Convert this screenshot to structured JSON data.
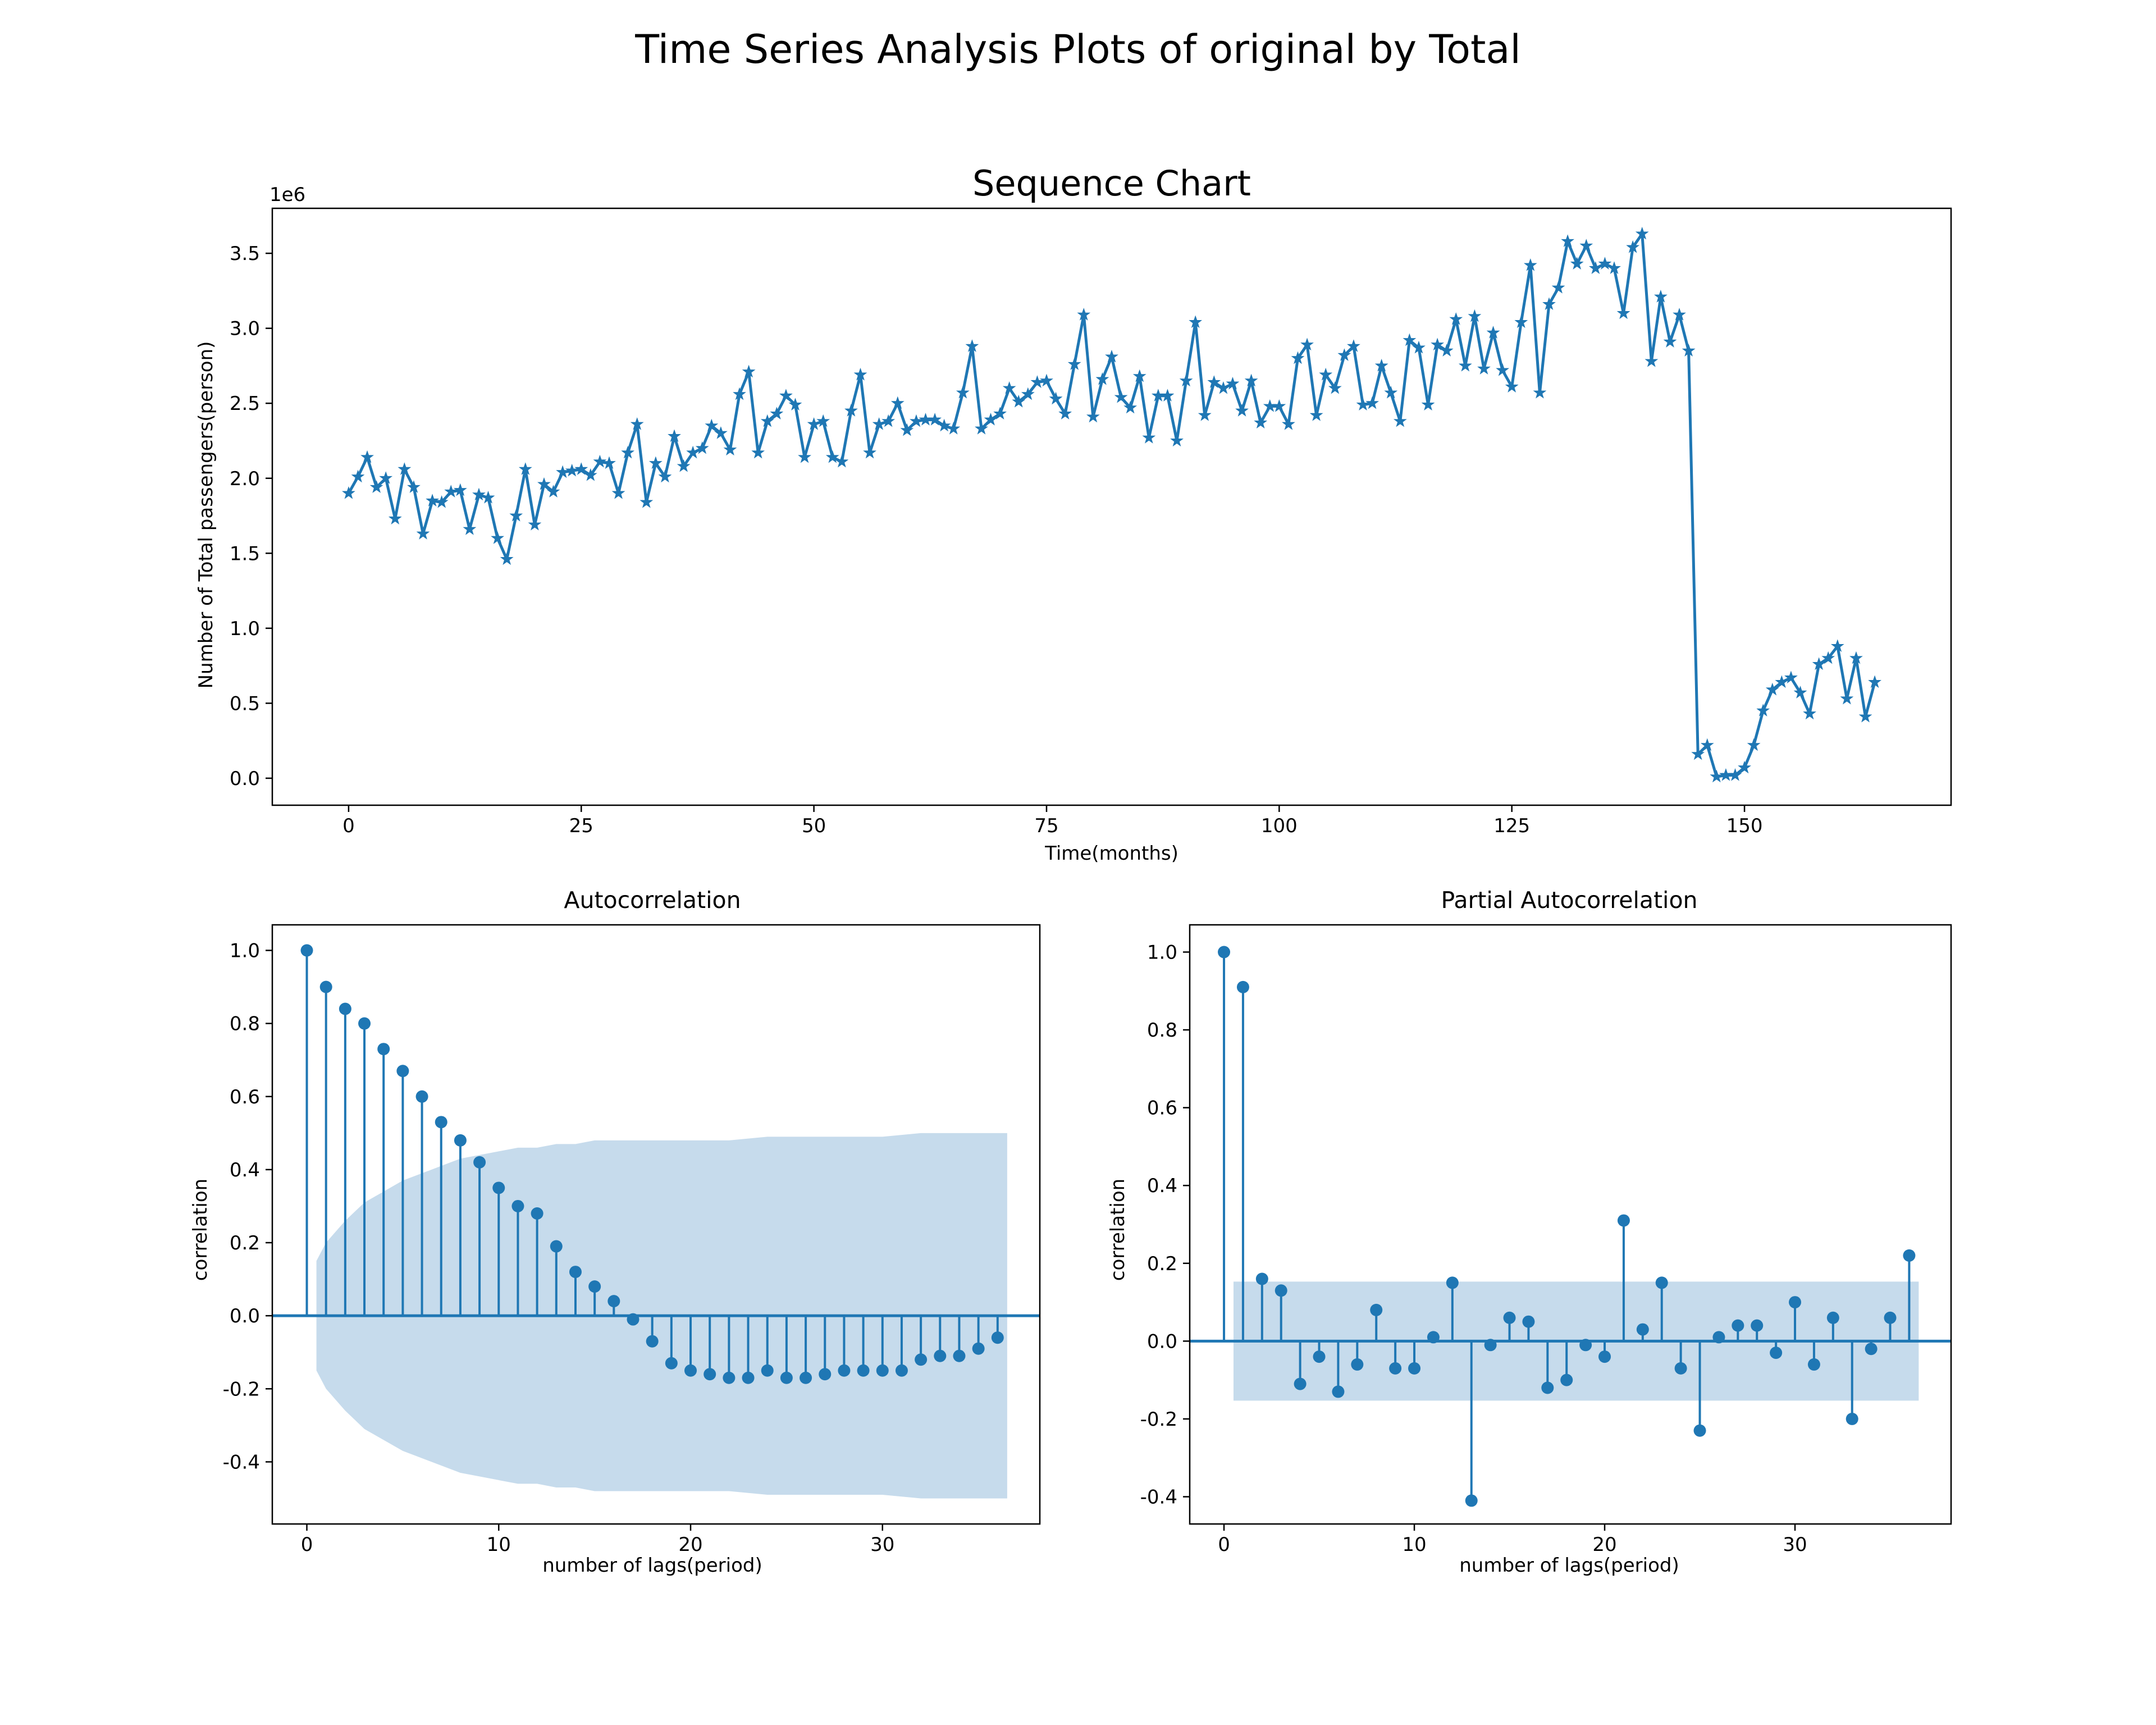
{
  "figure": {
    "suptitle": "Time Series Analysis Plots of original by Total"
  },
  "chart_data": [
    {
      "type": "line",
      "title": "Sequence Chart",
      "xlabel": "Time(months)",
      "ylabel": "Number of Total passengers(person)",
      "y_offset_label": "1e6",
      "marker": "star",
      "color": "#1f77b4",
      "xlim": [
        -8.2,
        172.2
      ],
      "ylim": [
        -0.18,
        3.8
      ],
      "x_ticks": [
        0,
        25,
        50,
        75,
        100,
        125,
        150
      ],
      "x_tick_labels": [
        "0",
        "25",
        "50",
        "75",
        "100",
        "125",
        "150"
      ],
      "y_ticks": [
        0,
        0.5,
        1.0,
        1.5,
        2.0,
        2.5,
        3.0,
        3.5
      ],
      "y_tick_labels": [
        "0.0",
        "0.5",
        "1.0",
        "1.5",
        "2.0",
        "2.5",
        "3.0",
        "3.5"
      ],
      "series": [
        {
          "x": [
            0,
            1,
            2,
            3,
            4,
            5,
            6,
            7,
            8,
            9,
            10,
            11,
            12,
            13,
            14,
            15,
            16,
            17,
            18,
            19,
            20,
            21,
            22,
            23,
            24,
            25,
            26,
            27,
            28,
            29,
            30,
            31,
            32,
            33,
            34,
            35,
            36,
            37,
            38,
            39,
            40,
            41,
            42,
            43,
            44,
            45,
            46,
            47,
            48,
            49,
            50,
            51,
            52,
            53,
            54,
            55,
            56,
            57,
            58,
            59,
            60,
            61,
            62,
            63,
            64,
            65,
            66,
            67,
            68,
            69,
            70,
            71,
            72,
            73,
            74,
            75,
            76,
            77,
            78,
            79,
            80,
            81,
            82,
            83,
            84,
            85,
            86,
            87,
            88,
            89,
            90,
            91,
            92,
            93,
            94,
            95,
            96,
            97,
            98,
            99,
            100,
            101,
            102,
            103,
            104,
            105,
            106,
            107,
            108,
            109,
            110,
            111,
            112,
            113,
            114,
            115,
            116,
            117,
            118,
            119,
            120,
            121,
            122,
            123,
            124,
            125,
            126,
            127,
            128,
            129,
            130,
            131,
            132,
            133,
            134,
            135,
            136,
            137,
            138,
            139,
            140,
            141,
            142,
            143,
            144,
            145,
            146,
            147,
            148,
            149,
            150,
            151,
            152,
            153,
            154,
            155,
            156,
            157,
            158,
            159,
            160,
            161,
            162,
            163,
            164
          ],
          "values": [
            1.9,
            2.01,
            2.14,
            1.94,
            2.0,
            1.73,
            2.06,
            1.94,
            1.63,
            1.85,
            1.84,
            1.91,
            1.92,
            1.66,
            1.89,
            1.87,
            1.6,
            1.46,
            1.75,
            2.06,
            1.69,
            1.96,
            1.91,
            2.04,
            2.05,
            2.06,
            2.02,
            2.11,
            2.1,
            1.9,
            2.17,
            2.36,
            1.84,
            2.1,
            2.01,
            2.28,
            2.08,
            2.17,
            2.2,
            2.35,
            2.3,
            2.19,
            2.56,
            2.71,
            2.17,
            2.38,
            2.43,
            2.55,
            2.49,
            2.14,
            2.36,
            2.38,
            2.14,
            2.11,
            2.45,
            2.69,
            2.17,
            2.36,
            2.38,
            2.5,
            2.32,
            2.38,
            2.39,
            2.39,
            2.35,
            2.33,
            2.57,
            2.88,
            2.33,
            2.39,
            2.43,
            2.6,
            2.51,
            2.56,
            2.64,
            2.65,
            2.53,
            2.43,
            2.76,
            3.09,
            2.41,
            2.66,
            2.81,
            2.54,
            2.47,
            2.68,
            2.27,
            2.55,
            2.55,
            2.25,
            2.65,
            3.04,
            2.42,
            2.64,
            2.6,
            2.63,
            2.45,
            2.65,
            2.37,
            2.48,
            2.48,
            2.36,
            2.8,
            2.89,
            2.42,
            2.69,
            2.6,
            2.82,
            2.88,
            2.49,
            2.5,
            2.75,
            2.57,
            2.38,
            2.92,
            2.87,
            2.49,
            2.89,
            2.85,
            3.06,
            2.75,
            3.08,
            2.73,
            2.97,
            2.72,
            2.61,
            3.04,
            3.42,
            2.57,
            3.16,
            3.27,
            3.58,
            3.43,
            3.55,
            3.4,
            3.43,
            3.4,
            3.1,
            3.54,
            3.63,
            2.78,
            3.21,
            2.91,
            3.09,
            2.85,
            0.16,
            0.22,
            0.01,
            0.02,
            0.02,
            0.07,
            0.22,
            0.45,
            0.59,
            0.64,
            0.67,
            0.57,
            0.43,
            0.76,
            0.8,
            0.88,
            0.53,
            0.8,
            0.41,
            0.64
          ]
        }
      ]
    },
    {
      "type": "stem",
      "title": "Autocorrelation",
      "xlabel": "number of lags(period)",
      "ylabel": "correlation",
      "color": "#1f77b4",
      "confidence_band_color": "#c6dbec",
      "xlim": [
        -1.8,
        38.2
      ],
      "ylim": [
        -0.57,
        1.07
      ],
      "x_ticks": [
        0,
        10,
        20,
        30
      ],
      "x_tick_labels": [
        "0",
        "10",
        "20",
        "30"
      ],
      "y_ticks": [
        -0.4,
        -0.2,
        0.0,
        0.2,
        0.4,
        0.6,
        0.8,
        1.0
      ],
      "y_tick_labels": [
        "-0.4",
        "-0.2",
        "0.0",
        "0.2",
        "0.4",
        "0.6",
        "0.8",
        "1.0"
      ],
      "lags": [
        0,
        1,
        2,
        3,
        4,
        5,
        6,
        7,
        8,
        9,
        10,
        11,
        12,
        13,
        14,
        15,
        16,
        17,
        18,
        19,
        20,
        21,
        22,
        23,
        24,
        25,
        26,
        27,
        28,
        29,
        30,
        31,
        32,
        33,
        34,
        35,
        36
      ],
      "values": [
        1.0,
        0.9,
        0.84,
        0.8,
        0.73,
        0.67,
        0.6,
        0.53,
        0.48,
        0.42,
        0.35,
        0.3,
        0.28,
        0.19,
        0.12,
        0.08,
        0.04,
        -0.01,
        -0.07,
        -0.13,
        -0.15,
        -0.16,
        -0.17,
        -0.17,
        -0.15,
        -0.17,
        -0.17,
        -0.16,
        -0.15,
        -0.15,
        -0.15,
        -0.15,
        -0.12,
        -0.11,
        -0.11,
        -0.09,
        -0.06
      ],
      "confidence_band": {
        "lags": [
          0.5,
          1,
          2,
          3,
          4,
          5,
          6,
          7,
          8,
          9,
          10,
          11,
          12,
          13,
          14,
          15,
          16,
          17,
          18,
          19,
          20,
          22,
          24,
          26,
          28,
          30,
          32,
          34,
          36,
          36.5
        ],
        "upper": [
          0.15,
          0.2,
          0.26,
          0.31,
          0.34,
          0.37,
          0.39,
          0.41,
          0.43,
          0.44,
          0.45,
          0.46,
          0.46,
          0.47,
          0.47,
          0.48,
          0.48,
          0.48,
          0.48,
          0.48,
          0.48,
          0.48,
          0.49,
          0.49,
          0.49,
          0.49,
          0.5,
          0.5,
          0.5,
          0.5
        ]
      }
    },
    {
      "type": "stem",
      "title": "Partial Autocorrelation",
      "xlabel": "number of lags(period)",
      "ylabel": "correlation",
      "color": "#1f77b4",
      "confidence_band_color": "#c6dbec",
      "xlim": [
        -1.8,
        38.2
      ],
      "ylim": [
        -0.47,
        1.07
      ],
      "x_ticks": [
        0,
        10,
        20,
        30
      ],
      "x_tick_labels": [
        "0",
        "10",
        "20",
        "30"
      ],
      "y_ticks": [
        -0.4,
        -0.2,
        0.0,
        0.2,
        0.4,
        0.6,
        0.8,
        1.0
      ],
      "y_tick_labels": [
        "-0.4",
        "-0.2",
        "0.0",
        "0.2",
        "0.4",
        "0.6",
        "0.8",
        "1.0"
      ],
      "lags": [
        0,
        1,
        2,
        3,
        4,
        5,
        6,
        7,
        8,
        9,
        10,
        11,
        12,
        13,
        14,
        15,
        16,
        17,
        18,
        19,
        20,
        21,
        22,
        23,
        24,
        25,
        26,
        27,
        28,
        29,
        30,
        31,
        32,
        33,
        34,
        35,
        36
      ],
      "values": [
        1.0,
        0.91,
        0.16,
        0.13,
        -0.11,
        -0.04,
        -0.13,
        -0.06,
        0.08,
        -0.07,
        -0.07,
        0.01,
        0.15,
        -0.41,
        -0.01,
        0.06,
        0.05,
        -0.12,
        -0.1,
        -0.01,
        -0.04,
        0.31,
        0.03,
        0.15,
        -0.07,
        -0.23,
        0.01,
        0.04,
        0.04,
        -0.03,
        0.1,
        -0.06,
        0.06,
        -0.2,
        -0.02,
        0.06,
        0.22
      ],
      "confidence_band": {
        "lags": [
          0.5,
          36.5
        ],
        "upper": [
          0.153,
          0.153
        ]
      }
    }
  ]
}
